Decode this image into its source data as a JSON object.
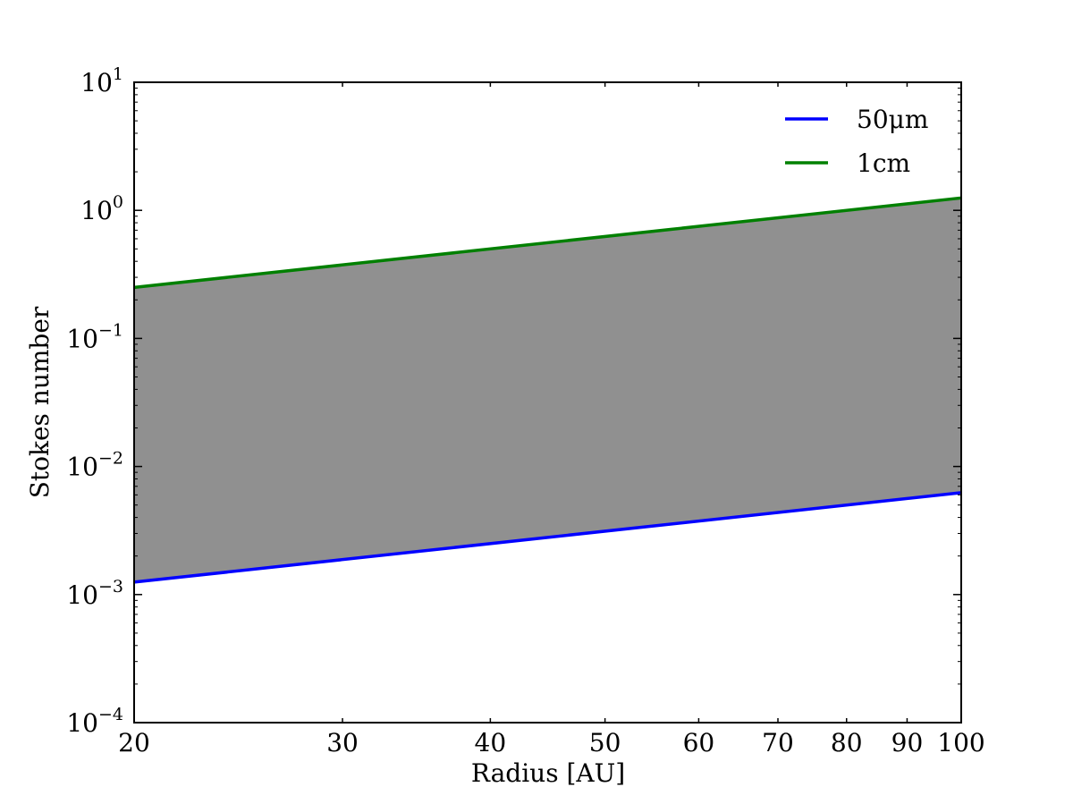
{
  "chart_data": {
    "type": "line",
    "title": "",
    "xlabel": "Radius [AU]",
    "ylabel": "Stokes number",
    "x_scale": "log",
    "y_scale": "log",
    "xlim": [
      20,
      100
    ],
    "ylim": [
      0.0001,
      10
    ],
    "x_ticks": [
      {
        "value": 20,
        "label": "20"
      },
      {
        "value": 30,
        "label": "30"
      },
      {
        "value": 40,
        "label": "40"
      },
      {
        "value": 50,
        "label": "50"
      },
      {
        "value": 60,
        "label": "60"
      },
      {
        "value": 70,
        "label": "70"
      },
      {
        "value": 80,
        "label": "80"
      },
      {
        "value": 90,
        "label": "90"
      },
      {
        "value": 100,
        "label": "100"
      }
    ],
    "y_ticks": [
      {
        "value": 10,
        "base": "10",
        "exp": "1"
      },
      {
        "value": 1,
        "base": "10",
        "exp": "0"
      },
      {
        "value": 0.1,
        "base": "10",
        "exp": "−1"
      },
      {
        "value": 0.01,
        "base": "10",
        "exp": "−2"
      },
      {
        "value": 0.001,
        "base": "10",
        "exp": "−3"
      },
      {
        "value": 0.0001,
        "base": "10",
        "exp": "−4"
      }
    ],
    "grid": false,
    "legend_position": "top-right",
    "series": [
      {
        "name": "50μm",
        "color": "#0000ff",
        "x": [
          20,
          100
        ],
        "y": [
          0.00125,
          0.00625
        ]
      },
      {
        "name": "1cm",
        "color": "#008000",
        "x": [
          20,
          100
        ],
        "y": [
          0.25,
          1.25
        ]
      }
    ],
    "fill_between": {
      "lower_series": "50μm",
      "upper_series": "1cm",
      "color": "#909090"
    }
  }
}
